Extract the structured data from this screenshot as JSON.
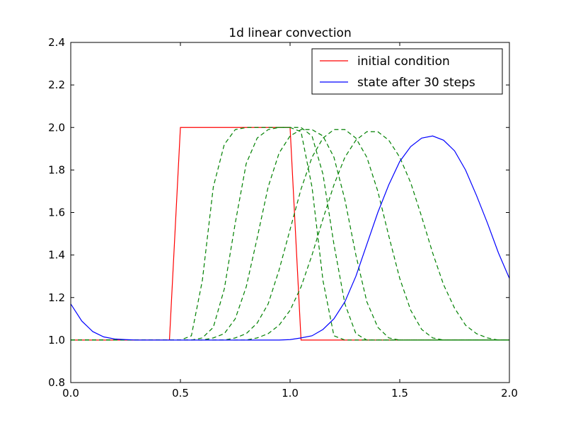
{
  "chart_data": {
    "type": "line",
    "title": "1d linear convection",
    "xlabel": "",
    "ylabel": "",
    "xlim": [
      0.0,
      2.0
    ],
    "ylim": [
      0.8,
      2.4
    ],
    "xticks": [
      "0.0",
      "0.5",
      "1.0",
      "1.5",
      "2.0"
    ],
    "yticks": [
      "0.8",
      "1.0",
      "1.2",
      "1.4",
      "1.6",
      "1.8",
      "2.0",
      "2.2",
      "2.4"
    ],
    "grid": false,
    "legend": {
      "position": "top-right",
      "entries": [
        "initial condition",
        "state after 30 steps"
      ]
    },
    "colors": {
      "initial": "#ff0000",
      "final": "#0000ff",
      "intermediate": "#008000"
    },
    "x": [
      0.0,
      0.05,
      0.1,
      0.15,
      0.2,
      0.25,
      0.3,
      0.35,
      0.4,
      0.45,
      0.5,
      0.55,
      0.6,
      0.65,
      0.7,
      0.75,
      0.8,
      0.85,
      0.9,
      0.95,
      1.0,
      1.05,
      1.1,
      1.15,
      1.2,
      1.25,
      1.3,
      1.35,
      1.4,
      1.45,
      1.5,
      1.55,
      1.6,
      1.65,
      1.7,
      1.75,
      1.8,
      1.85,
      1.9,
      1.95,
      2.0
    ],
    "series": [
      {
        "name": "initial condition",
        "style": "solid",
        "color": "#ff0000",
        "values": [
          1,
          1,
          1,
          1,
          1,
          1,
          1,
          1,
          1,
          1,
          2,
          2,
          2,
          2,
          2,
          2,
          2,
          2,
          2,
          2,
          2,
          1,
          1,
          1,
          1,
          1,
          1,
          1,
          1,
          1,
          1,
          1,
          1,
          1,
          1,
          1,
          1,
          1,
          1,
          1,
          1
        ]
      },
      {
        "style": "dashed",
        "color": "#008000",
        "values": [
          1,
          1,
          1,
          1,
          1,
          1,
          1,
          1,
          1,
          1,
          1,
          1.02,
          1.28,
          1.72,
          1.92,
          1.99,
          2,
          2,
          2,
          2,
          2,
          1.98,
          1.72,
          1.28,
          1.02,
          1,
          1,
          1,
          1,
          1,
          1,
          1,
          1,
          1,
          1,
          1,
          1,
          1,
          1,
          1,
          1
        ]
      },
      {
        "style": "dashed",
        "color": "#008000",
        "values": [
          1,
          1,
          1,
          1,
          1,
          1,
          1,
          1,
          1,
          1,
          1,
          1,
          1.01,
          1.06,
          1.24,
          1.55,
          1.83,
          1.95,
          1.99,
          2,
          2,
          2,
          1.96,
          1.78,
          1.45,
          1.17,
          1.03,
          1,
          1,
          1,
          1,
          1,
          1,
          1,
          1,
          1,
          1,
          1,
          1,
          1,
          1
        ]
      },
      {
        "style": "dashed",
        "color": "#008000",
        "values": [
          1,
          1,
          1,
          1,
          1,
          1,
          1,
          1,
          1,
          1,
          1,
          1,
          1,
          1.01,
          1.03,
          1.1,
          1.25,
          1.48,
          1.72,
          1.88,
          1.96,
          1.99,
          1.99,
          1.96,
          1.86,
          1.66,
          1.4,
          1.18,
          1.06,
          1.01,
          1,
          1,
          1,
          1,
          1,
          1,
          1,
          1,
          1,
          1,
          1
        ]
      },
      {
        "style": "dashed",
        "color": "#008000",
        "values": [
          1,
          1,
          1,
          1,
          1,
          1,
          1,
          1,
          1,
          1,
          1,
          1,
          1,
          1,
          1,
          1.01,
          1.03,
          1.08,
          1.17,
          1.33,
          1.52,
          1.71,
          1.86,
          1.95,
          1.99,
          1.99,
          1.95,
          1.86,
          1.7,
          1.49,
          1.29,
          1.14,
          1.05,
          1.01,
          1,
          1,
          1,
          1,
          1,
          1,
          1
        ]
      },
      {
        "style": "dashed",
        "color": "#008000",
        "values": [
          1,
          1,
          1,
          1,
          1,
          1,
          1,
          1,
          1,
          1,
          1,
          1,
          1,
          1,
          1,
          1,
          1,
          1.01,
          1.03,
          1.07,
          1.14,
          1.25,
          1.4,
          1.57,
          1.73,
          1.86,
          1.94,
          1.98,
          1.98,
          1.94,
          1.86,
          1.74,
          1.58,
          1.41,
          1.26,
          1.15,
          1.07,
          1.03,
          1.01,
          1,
          1
        ]
      },
      {
        "name": "state after 30 steps",
        "style": "solid",
        "color": "#0000ff",
        "values": [
          1.17,
          1.09,
          1.04,
          1.015,
          1.005,
          1.002,
          1,
          1,
          1,
          1,
          1,
          1,
          1,
          1,
          1,
          1,
          1,
          1,
          1,
          1,
          1.002,
          1.01,
          1.02,
          1.05,
          1.1,
          1.18,
          1.3,
          1.45,
          1.6,
          1.73,
          1.84,
          1.91,
          1.95,
          1.96,
          1.94,
          1.89,
          1.8,
          1.68,
          1.55,
          1.41,
          1.29
        ]
      }
    ]
  }
}
